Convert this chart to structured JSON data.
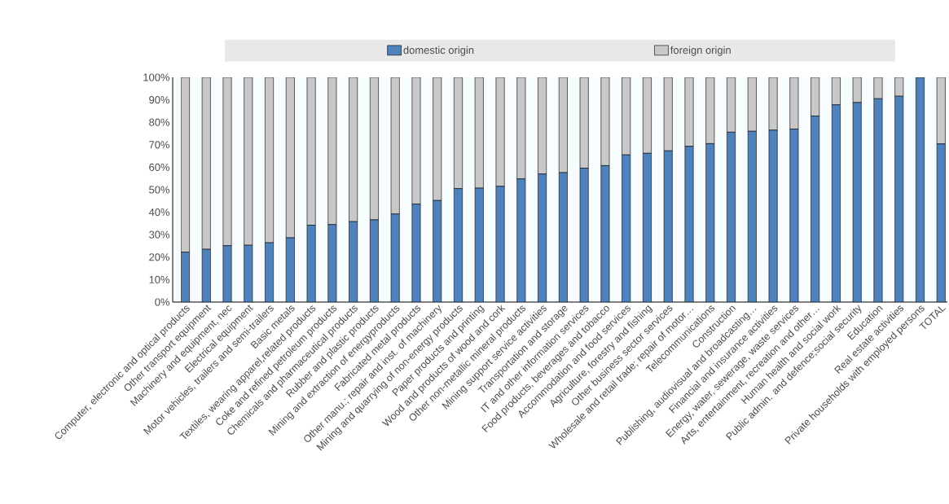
{
  "chart_data": {
    "type": "bar",
    "stacked": true,
    "categories": [
      "Computer, electronic and optical products",
      "Other transport equipment",
      "Machinery and equipment, nec",
      "Electrical equipment",
      "Motor vehicles, trailers and semi-trailers",
      "Basic metals",
      "Textiles, wearing apparel,related products",
      "Coke and refined petroleum products",
      "Chemicals and pharmaceutical products",
      "Rubber and plastic products",
      "Mining and extraction of energyproducts",
      "Fabricated metal products",
      "Other manu.; repair and inst. of machinery",
      "Mining and quarrying of non-energy  products",
      "Paper products and printing",
      "Wood and products of wood and cork",
      "Other non-metallic mineral products",
      "Mining support service activities",
      "Transportation and storage",
      "IT and other information services",
      "Food products, beverages and tobacco",
      "Accommodation and food services",
      "Agriculture, forestry and fishing",
      "Other business sector services",
      "Wholesale and retail trade; repair of motor…",
      "Telecommunications",
      "Construction",
      "Publishing, audiovisual and broadcasting…",
      "Financial and insurance activities",
      "Energy, water, sewerage, waste services",
      "Arts, entertainment, recreation and other…",
      "Human health and social work",
      "Public admin. and defence;social security",
      "Education",
      "Real estate activities",
      "Private households with employed persons",
      "TOTAL"
    ],
    "series": [
      {
        "name": "domestic origin",
        "color": "#4f81bd",
        "values": [
          22.2,
          23.5,
          25.1,
          25.3,
          26.4,
          28.6,
          34.2,
          34.5,
          35.8,
          36.6,
          39.2,
          43.6,
          45.2,
          50.5,
          50.7,
          51.5,
          54.8,
          57.0,
          57.6,
          59.6,
          60.7,
          65.5,
          66.2,
          67.3,
          69.3,
          70.5,
          75.6,
          76.0,
          76.5,
          77.0,
          82.8,
          87.8,
          88.8,
          90.5,
          91.6,
          100,
          70.4
        ]
      },
      {
        "name": "foreign origin",
        "color": "#c8c8c8",
        "values": [
          77.8,
          76.5,
          74.9,
          74.7,
          73.6,
          71.4,
          65.8,
          65.5,
          64.2,
          63.4,
          60.8,
          56.4,
          54.8,
          49.5,
          49.3,
          48.5,
          45.2,
          43.0,
          42.4,
          40.4,
          39.3,
          34.5,
          33.8,
          32.7,
          30.7,
          29.5,
          24.4,
          24.0,
          23.5,
          23.0,
          17.2,
          12.2,
          11.2,
          9.5,
          8.4,
          0,
          29.6
        ]
      }
    ],
    "ylim": [
      0,
      100
    ],
    "yticks": [
      {
        "value": 0,
        "label": "0%"
      },
      {
        "value": 10,
        "label": "10%"
      },
      {
        "value": 20,
        "label": "20%"
      },
      {
        "value": 30,
        "label": "30%"
      },
      {
        "value": 40,
        "label": "40%"
      },
      {
        "value": 50,
        "label": "50%"
      },
      {
        "value": 60,
        "label": "60%"
      },
      {
        "value": 70,
        "label": "70%"
      },
      {
        "value": 80,
        "label": "80%"
      },
      {
        "value": 90,
        "label": "90%"
      },
      {
        "value": 100,
        "label": "100%"
      }
    ],
    "legend": "top"
  }
}
